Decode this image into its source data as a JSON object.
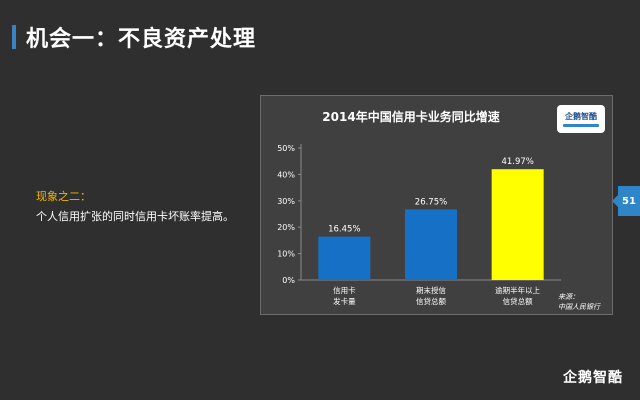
{
  "slide": {
    "title": "机会一：不良资产处理",
    "accent_color": "#3b82c4",
    "page_number": "51",
    "brand_logo": "企鹅智酷"
  },
  "observation": {
    "label": "现象之二：",
    "text": "个人信用扩张的同时信用卡坏账率提高。"
  },
  "chart_data": {
    "type": "bar",
    "title": "2014年中国信用卡业务同比增速",
    "categories": [
      [
        "信用卡",
        "发卡量"
      ],
      [
        "期末授信",
        "信贷总额"
      ],
      [
        "逾期半年以上",
        "信贷总额"
      ]
    ],
    "values": [
      16.45,
      26.75,
      41.97
    ],
    "data_labels": [
      "16.45%",
      "26.75%",
      "41.97%"
    ],
    "bar_colors": [
      "#1670c6",
      "#1670c6",
      "#ffff00"
    ],
    "y_ticks": [
      "0%",
      "10%",
      "20%",
      "30%",
      "40%",
      "50%"
    ],
    "ylim": [
      0,
      50
    ],
    "grid": false,
    "logo_text": "企鹅智酷",
    "source": [
      "来源：",
      "中国人民银行"
    ]
  }
}
